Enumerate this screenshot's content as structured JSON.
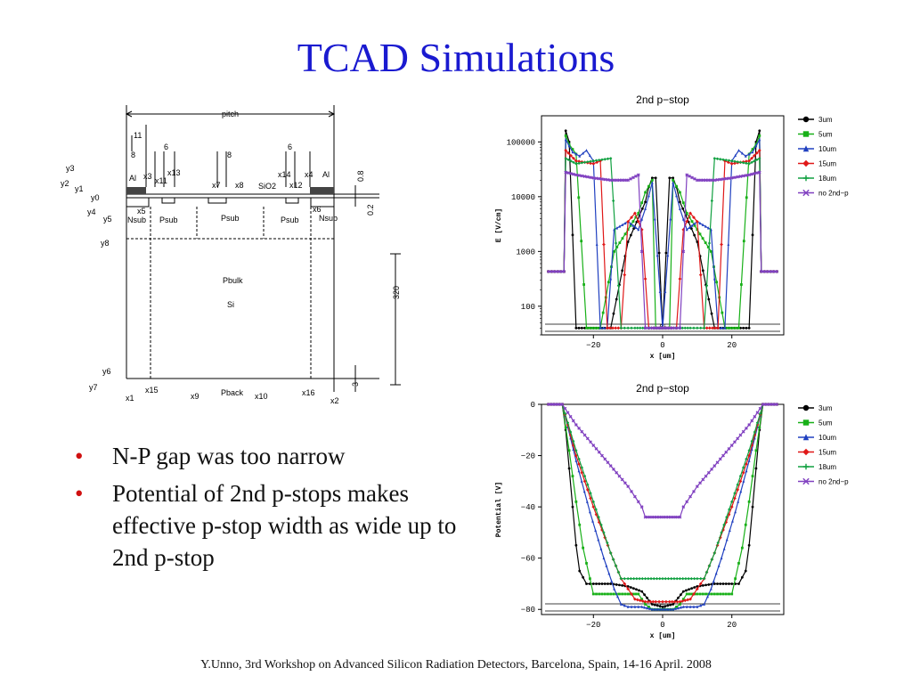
{
  "slide": {
    "title": "TCAD Simulations",
    "bullets": [
      "N-P gap was too narrow",
      "Potential of 2nd p-stops makes effective p-stop width as wide up to 2nd p-stop"
    ],
    "footer": "Y.Unno, 3rd Workshop on Advanced Silicon Radiation Detectors, Barcelona, Spain, 14-16 April. 2008"
  },
  "colors": {
    "title": "#1a1ad0",
    "bullet": "#d01010",
    "s3um": "#000000",
    "s5um": "#18b018",
    "s10um": "#2040c0",
    "s15um": "#e01818",
    "s18um": "#10a040",
    "sno2nd": "#8040c0"
  },
  "diagram": {
    "labels": [
      "pitch",
      "11",
      "6",
      "6",
      "8",
      "8",
      "Al",
      "Al",
      "x3",
      "x13",
      "x11",
      "x7",
      "x8",
      "SiO2",
      "x14",
      "x12",
      "x4",
      "0.8",
      "y3",
      "y2",
      "y1",
      "y0",
      "y4",
      "y5",
      "x5",
      "x6",
      "Nsub",
      "Psub",
      "Psub",
      "Psub",
      "Nsub",
      "0.2",
      "y8",
      "Pbulk",
      "Si",
      "320",
      "y6",
      "y7",
      "x1",
      "x15",
      "x9",
      "Pback",
      "x10",
      "x16",
      "x2",
      "3"
    ]
  },
  "chart_data": [
    {
      "type": "line",
      "title": "2nd p−stop",
      "xlabel": "x [um]",
      "ylabel": "E [V/cm]",
      "yscale": "log",
      "ylim": [
        30,
        300000
      ],
      "xlim": [
        -35,
        35
      ],
      "xticks": [
        "−20",
        "0",
        "20"
      ],
      "yticks": [
        "100000",
        "10000",
        "1000",
        "100"
      ],
      "annotation": "Si",
      "legend": {
        "position": "right",
        "entries": [
          "3um",
          "5um",
          "10um",
          "15um",
          "18um",
          "no 2nd−p"
        ]
      },
      "series": [
        {
          "name": "3um",
          "x": [
            -33,
            -28.5,
            -28,
            -27,
            -25,
            -20,
            -15,
            -10,
            -5,
            -4,
            -3,
            -2,
            0,
            2,
            3,
            4,
            5,
            10,
            15,
            20,
            25,
            27,
            28,
            28.5,
            33
          ],
          "y": [
            430,
            430,
            160000,
            100000,
            40,
            40,
            40,
            1500,
            8000,
            15000,
            22000,
            22000,
            40,
            22000,
            22000,
            15000,
            8000,
            1500,
            40,
            40,
            40,
            100000,
            160000,
            430,
            430
          ]
        },
        {
          "name": "5um",
          "x": [
            -33,
            -28.5,
            -28,
            -27,
            -25,
            -22,
            -18,
            -14,
            -10,
            -7,
            -5,
            -3,
            -2,
            0,
            2,
            3,
            5,
            7,
            10,
            14,
            18,
            22,
            25,
            27,
            28,
            28.5,
            33
          ],
          "y": [
            430,
            430,
            130000,
            90000,
            60000,
            40,
            40,
            1000,
            2500,
            5000,
            12000,
            20000,
            40,
            40,
            40,
            20000,
            12000,
            5000,
            2500,
            1000,
            40,
            40,
            60000,
            90000,
            130000,
            430,
            430
          ]
        },
        {
          "name": "10um",
          "x": [
            -33,
            -28.5,
            -28,
            -26,
            -24,
            -22,
            -20,
            -18,
            -16,
            -14,
            -10,
            -7,
            -5,
            -3,
            0,
            3,
            5,
            7,
            10,
            14,
            16,
            18,
            20,
            22,
            24,
            26,
            28,
            28.5,
            33
          ],
          "y": [
            430,
            430,
            110000,
            65000,
            55000,
            70000,
            45000,
            40,
            40,
            2500,
            3500,
            2500,
            6000,
            18000,
            40,
            18000,
            6000,
            2500,
            3500,
            2500,
            40,
            40,
            45000,
            70000,
            55000,
            65000,
            110000,
            430,
            430
          ]
        },
        {
          "name": "15um",
          "x": [
            -33,
            -28.5,
            -28,
            -25,
            -20,
            -18,
            -16,
            -12,
            -10,
            -8,
            -6,
            -4,
            0,
            4,
            6,
            8,
            10,
            12,
            16,
            18,
            20,
            25,
            28,
            28.5,
            33
          ],
          "y": [
            430,
            430,
            70000,
            45000,
            40000,
            45000,
            40,
            40,
            3500,
            5000,
            2500,
            40,
            40,
            40,
            2500,
            5000,
            3500,
            40,
            40,
            45000,
            40000,
            45000,
            70000,
            430,
            430
          ]
        },
        {
          "name": "18um",
          "x": [
            -33,
            -28.5,
            -28,
            -25,
            -20,
            -15,
            -12,
            -10,
            -8,
            -5,
            0,
            5,
            8,
            10,
            12,
            15,
            20,
            25,
            28,
            28.5,
            33
          ],
          "y": [
            430,
            430,
            50000,
            40000,
            45000,
            50000,
            40,
            40,
            40,
            40,
            40,
            40,
            40,
            40,
            40,
            50000,
            45000,
            40000,
            50000,
            430,
            430
          ]
        },
        {
          "name": "no 2nd−p",
          "x": [
            -33,
            -28.5,
            -28,
            -25,
            -20,
            -15,
            -10,
            -7,
            -5,
            -3,
            0,
            3,
            5,
            7,
            10,
            15,
            20,
            25,
            28,
            28.5,
            33
          ],
          "y": [
            430,
            430,
            28000,
            25000,
            22000,
            20000,
            20000,
            25000,
            40,
            40,
            40,
            40,
            40,
            25000,
            20000,
            20000,
            22000,
            25000,
            28000,
            430,
            430
          ]
        }
      ]
    },
    {
      "type": "line",
      "title": "2nd p−stop",
      "xlabel": "x [um]",
      "ylabel": "Potential [V]",
      "ylim": [
        -82,
        0
      ],
      "xlim": [
        -35,
        35
      ],
      "xticks": [
        "−20",
        "0",
        "20"
      ],
      "yticks": [
        "0",
        "−20",
        "−40",
        "−60",
        "−80"
      ],
      "annotation": "Si",
      "legend": {
        "position": "right",
        "entries": [
          "3um",
          "5um",
          "10um",
          "15um",
          "18um",
          "no 2nd−p"
        ]
      },
      "series": [
        {
          "name": "3um",
          "x": [
            -33,
            -29,
            -28,
            -27,
            -26,
            -25,
            -24,
            -22,
            -20,
            -15,
            -10,
            -6,
            -3,
            0,
            3,
            6,
            10,
            15,
            20,
            22,
            24,
            25,
            26,
            27,
            28,
            29,
            33
          ],
          "y": [
            0,
            0,
            -10,
            -25,
            -40,
            -55,
            -65,
            -70,
            -70,
            -70,
            -71,
            -73,
            -78,
            -79,
            -78,
            -73,
            -71,
            -70,
            -70,
            -70,
            -65,
            -55,
            -40,
            -25,
            -10,
            0,
            0
          ]
        },
        {
          "name": "5um",
          "x": [
            -33,
            -29,
            -27,
            -25,
            -23,
            -21,
            -20,
            -15,
            -10,
            -7,
            -5,
            -3,
            0,
            3,
            5,
            7,
            10,
            15,
            20,
            21,
            23,
            25,
            27,
            29,
            33
          ],
          "y": [
            0,
            0,
            -18,
            -38,
            -56,
            -68,
            -74,
            -74,
            -74,
            -74,
            -78,
            -80,
            -80,
            -80,
            -78,
            -74,
            -74,
            -74,
            -74,
            -68,
            -56,
            -38,
            -18,
            0,
            0
          ]
        },
        {
          "name": "10um",
          "x": [
            -33,
            -29,
            -25,
            -21,
            -17,
            -14,
            -12,
            -10,
            -8,
            -6,
            -3,
            0,
            3,
            6,
            8,
            10,
            12,
            14,
            17,
            21,
            25,
            29,
            33
          ],
          "y": [
            0,
            0,
            -22,
            -42,
            -60,
            -72,
            -78,
            -79,
            -79,
            -79,
            -80,
            -80,
            -80,
            -79,
            -79,
            -79,
            -78,
            -72,
            -60,
            -42,
            -22,
            0,
            0
          ]
        },
        {
          "name": "15um",
          "x": [
            -33,
            -29,
            -25,
            -20,
            -15,
            -12,
            -10,
            -8,
            -5,
            -2,
            0,
            2,
            5,
            8,
            10,
            12,
            15,
            20,
            25,
            29,
            33
          ],
          "y": [
            0,
            0,
            -20,
            -40,
            -58,
            -68,
            -72,
            -76,
            -77,
            -77,
            -77,
            -77,
            -77,
            -76,
            -72,
            -68,
            -58,
            -40,
            -20,
            0,
            0
          ]
        },
        {
          "name": "18um",
          "x": [
            -33,
            -29,
            -25,
            -20,
            -17,
            -15,
            -12,
            -10,
            -5,
            0,
            5,
            10,
            12,
            15,
            17,
            20,
            25,
            29,
            33
          ],
          "y": [
            0,
            0,
            -18,
            -38,
            -50,
            -58,
            -68,
            -68,
            -68,
            -68,
            -68,
            -68,
            -68,
            -58,
            -50,
            -38,
            -18,
            0,
            0
          ]
        },
        {
          "name": "no 2nd−p",
          "x": [
            -33,
            -29,
            -25,
            -20,
            -15,
            -10,
            -8,
            -6,
            -5,
            0,
            5,
            6,
            8,
            10,
            15,
            20,
            25,
            29,
            33
          ],
          "y": [
            0,
            0,
            -8,
            -16,
            -24,
            -32,
            -36,
            -40,
            -44,
            -44,
            -44,
            -40,
            -36,
            -32,
            -24,
            -16,
            -8,
            0,
            0
          ]
        }
      ]
    }
  ]
}
